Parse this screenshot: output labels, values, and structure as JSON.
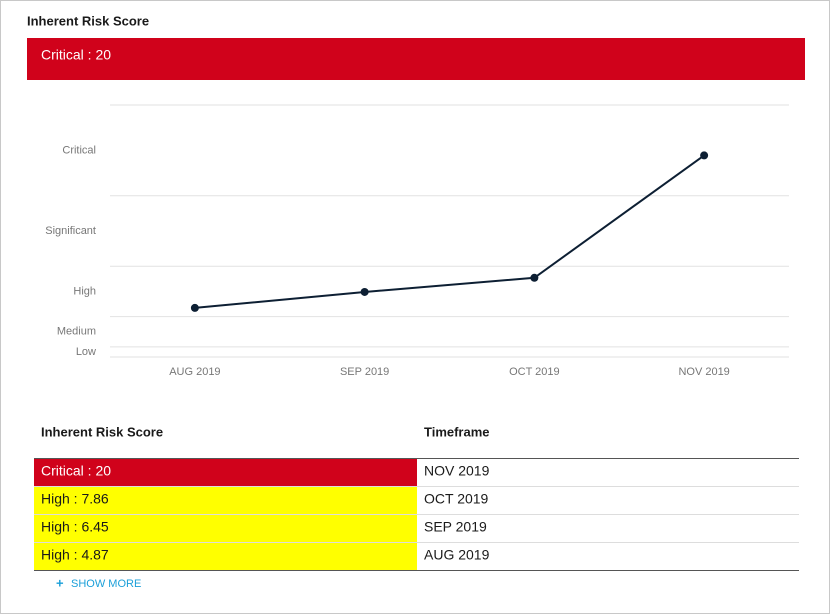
{
  "header": {
    "title": "Inherent Risk Score",
    "badge": {
      "text": "Critical : 20",
      "color": "#d0021b",
      "text_color": "#ffffff"
    }
  },
  "chart_data": {
    "type": "line",
    "categories": [
      "AUG 2019",
      "SEP 2019",
      "OCT 2019",
      "NOV 2019"
    ],
    "values": [
      4.87,
      6.45,
      7.86,
      20
    ],
    "color": "#0d1f33",
    "ylim": [
      0,
      25
    ],
    "yticks": [
      0,
      1,
      4,
      9,
      16,
      25
    ],
    "grid": true,
    "bands": [
      {
        "label": "Low",
        "from": 0,
        "to": 1
      },
      {
        "label": "Medium",
        "from": 1,
        "to": 4
      },
      {
        "label": "High",
        "from": 4,
        "to": 9
      },
      {
        "label": "Significant",
        "from": 9,
        "to": 16
      },
      {
        "label": "Critical",
        "from": 16,
        "to": 25
      }
    ]
  },
  "table": {
    "columns": [
      "Inherent Risk Score",
      "Timeframe"
    ],
    "rows": [
      {
        "cells": [
          "Critical : 20",
          "NOV 2019"
        ],
        "color": "#d0021b",
        "text_color": "#ffffff"
      },
      {
        "cells": [
          "High : 7.86",
          "OCT 2019"
        ],
        "color": "#ffff00",
        "text_color": "#1a1a1a"
      },
      {
        "cells": [
          "High : 6.45",
          "SEP 2019"
        ],
        "color": "#ffff00",
        "text_color": "#1a1a1a"
      },
      {
        "cells": [
          "High : 4.87",
          "AUG 2019"
        ],
        "color": "#ffff00",
        "text_color": "#1a1a1a"
      }
    ]
  },
  "show_more": "SHOW MORE"
}
